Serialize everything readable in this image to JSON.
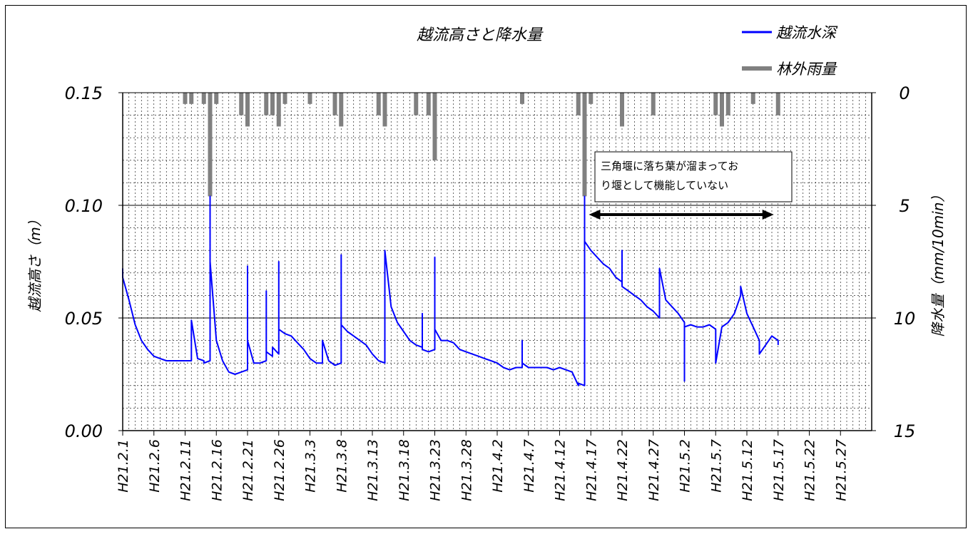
{
  "chart_data": {
    "type": "line",
    "title": "越流高さと降水量",
    "ylabel_left": "越流高さ（m）",
    "ylabel_right": "降水量（mm/10min）",
    "ylim_left": [
      0,
      0.15
    ],
    "ylim_right_inverted": [
      0,
      15
    ],
    "y_ticks_left": [
      "0.00",
      "0.05",
      "0.10",
      "0.15"
    ],
    "y_ticks_right": [
      "0",
      "5",
      "10",
      "15"
    ],
    "x_tick_labels": [
      "H21.2.1",
      "H21.2.6",
      "H21.2.11",
      "H21.2.16",
      "H21.2.21",
      "H21.2.26",
      "H21.3.3",
      "H21.3.8",
      "H21.3.13",
      "H21.3.18",
      "H21.3.23",
      "H21.3.28",
      "H21.4.2",
      "H21.4.7",
      "H21.4.12",
      "H21.4.17",
      "H21.4.22",
      "H21.4.27",
      "H21.5.2",
      "H21.5.7",
      "H21.5.12",
      "H21.5.17",
      "H21.5.22",
      "H21.5.27"
    ],
    "x_range_dates": [
      "2009-02-01",
      "2009-06-01"
    ],
    "grid": true,
    "legend": {
      "position": "top-right",
      "entries": [
        {
          "label": "越流水深",
          "color": "#0000ff"
        },
        {
          "label": "林外雨量",
          "color": "#808080"
        }
      ]
    },
    "annotation": {
      "lines": [
        "三角堰に落ち葉が溜まってお",
        "り堰として機能していない"
      ],
      "arrow_from": "2009-04-16",
      "arrow_to": "2009-05-17"
    },
    "series": [
      {
        "name": "越流水深",
        "axis": "left",
        "color": "#0000ff",
        "points": [
          [
            "2009-02-01",
            0.072
          ],
          [
            "2009-02-01",
            0.068
          ],
          [
            "2009-02-02",
            0.058
          ],
          [
            "2009-02-03",
            0.047
          ],
          [
            "2009-02-04",
            0.04
          ],
          [
            "2009-02-05",
            0.036
          ],
          [
            "2009-02-06",
            0.033
          ],
          [
            "2009-02-07",
            0.032
          ],
          [
            "2009-02-08",
            0.031
          ],
          [
            "2009-02-09",
            0.031
          ],
          [
            "2009-02-10",
            0.031
          ],
          [
            "2009-02-11",
            0.031
          ],
          [
            "2009-02-12",
            0.031
          ],
          [
            "2009-02-12",
            0.049
          ],
          [
            "2009-02-13",
            0.032
          ],
          [
            "2009-02-14",
            0.031
          ],
          [
            "2009-02-14",
            0.03
          ],
          [
            "2009-02-15",
            0.031
          ],
          [
            "2009-02-15",
            0.104
          ],
          [
            "2009-02-15",
            0.075
          ],
          [
            "2009-02-16",
            0.04
          ],
          [
            "2009-02-17",
            0.031
          ],
          [
            "2009-02-18",
            0.026
          ],
          [
            "2009-02-19",
            0.025
          ],
          [
            "2009-02-20",
            0.026
          ],
          [
            "2009-02-21",
            0.027
          ],
          [
            "2009-02-21",
            0.073
          ],
          [
            "2009-02-21",
            0.04
          ],
          [
            "2009-02-22",
            0.03
          ],
          [
            "2009-02-23",
            0.03
          ],
          [
            "2009-02-24",
            0.031
          ],
          [
            "2009-02-24",
            0.062
          ],
          [
            "2009-02-24",
            0.035
          ],
          [
            "2009-02-25",
            0.033
          ],
          [
            "2009-02-25",
            0.037
          ],
          [
            "2009-02-26",
            0.034
          ],
          [
            "2009-02-26",
            0.075
          ],
          [
            "2009-02-26",
            0.045
          ],
          [
            "2009-02-27",
            0.043
          ],
          [
            "2009-02-28",
            0.042
          ],
          [
            "2009-03-01",
            0.039
          ],
          [
            "2009-03-02",
            0.036
          ],
          [
            "2009-03-03",
            0.032
          ],
          [
            "2009-03-04",
            0.03
          ],
          [
            "2009-03-05",
            0.03
          ],
          [
            "2009-03-05",
            0.04
          ],
          [
            "2009-03-06",
            0.031
          ],
          [
            "2009-03-07",
            0.029
          ],
          [
            "2009-03-08",
            0.03
          ],
          [
            "2009-03-08",
            0.078
          ],
          [
            "2009-03-08",
            0.047
          ],
          [
            "2009-03-09",
            0.044
          ],
          [
            "2009-03-10",
            0.042
          ],
          [
            "2009-03-11",
            0.04
          ],
          [
            "2009-03-12",
            0.038
          ],
          [
            "2009-03-13",
            0.034
          ],
          [
            "2009-03-14",
            0.031
          ],
          [
            "2009-03-15",
            0.03
          ],
          [
            "2009-03-15",
            0.08
          ],
          [
            "2009-03-16",
            0.055
          ],
          [
            "2009-03-17",
            0.048
          ],
          [
            "2009-03-18",
            0.044
          ],
          [
            "2009-03-19",
            0.04
          ],
          [
            "2009-03-20",
            0.038
          ],
          [
            "2009-03-21",
            0.037
          ],
          [
            "2009-03-21",
            0.052
          ],
          [
            "2009-03-21",
            0.036
          ],
          [
            "2009-03-22",
            0.035
          ],
          [
            "2009-03-23",
            0.036
          ],
          [
            "2009-03-23",
            0.077
          ],
          [
            "2009-03-23",
            0.045
          ],
          [
            "2009-03-24",
            0.04
          ],
          [
            "2009-03-25",
            0.04
          ],
          [
            "2009-03-26",
            0.039
          ],
          [
            "2009-03-27",
            0.036
          ],
          [
            "2009-03-28",
            0.035
          ],
          [
            "2009-03-29",
            0.034
          ],
          [
            "2009-03-30",
            0.033
          ],
          [
            "2009-03-31",
            0.032
          ],
          [
            "2009-04-01",
            0.031
          ],
          [
            "2009-04-02",
            0.03
          ],
          [
            "2009-04-03",
            0.028
          ],
          [
            "2009-04-04",
            0.027
          ],
          [
            "2009-04-05",
            0.028
          ],
          [
            "2009-04-06",
            0.028
          ],
          [
            "2009-04-06",
            0.04
          ],
          [
            "2009-04-06",
            0.03
          ],
          [
            "2009-04-07",
            0.028
          ],
          [
            "2009-04-08",
            0.028
          ],
          [
            "2009-04-09",
            0.028
          ],
          [
            "2009-04-10",
            0.028
          ],
          [
            "2009-04-11",
            0.027
          ],
          [
            "2009-04-12",
            0.028
          ],
          [
            "2009-04-13",
            0.027
          ],
          [
            "2009-04-14",
            0.026
          ],
          [
            "2009-04-15",
            0.02
          ],
          [
            "2009-04-15",
            0.021
          ],
          [
            "2009-04-16",
            0.02
          ],
          [
            "2009-04-16",
            0.058
          ],
          [
            "2009-04-16",
            0.104
          ],
          [
            "2009-04-16",
            0.084
          ],
          [
            "2009-04-17",
            0.08
          ],
          [
            "2009-04-18",
            0.077
          ],
          [
            "2009-04-19",
            0.074
          ],
          [
            "2009-04-20",
            0.072
          ],
          [
            "2009-04-21",
            0.068
          ],
          [
            "2009-04-22",
            0.066
          ],
          [
            "2009-04-22",
            0.08
          ],
          [
            "2009-04-22",
            0.064
          ],
          [
            "2009-04-23",
            0.062
          ],
          [
            "2009-04-24",
            0.06
          ],
          [
            "2009-04-25",
            0.058
          ],
          [
            "2009-04-26",
            0.055
          ],
          [
            "2009-04-27",
            0.053
          ],
          [
            "2009-04-28",
            0.05
          ],
          [
            "2009-04-28",
            0.072
          ],
          [
            "2009-04-29",
            0.058
          ],
          [
            "2009-04-30",
            0.055
          ],
          [
            "2009-05-01",
            0.052
          ],
          [
            "2009-05-02",
            0.048
          ],
          [
            "2009-05-02",
            0.022
          ],
          [
            "2009-05-02",
            0.046
          ],
          [
            "2009-05-03",
            0.047
          ],
          [
            "2009-05-04",
            0.046
          ],
          [
            "2009-05-05",
            0.046
          ],
          [
            "2009-05-06",
            0.047
          ],
          [
            "2009-05-07",
            0.045
          ],
          [
            "2009-05-07",
            0.03
          ],
          [
            "2009-05-08",
            0.046
          ],
          [
            "2009-05-09",
            0.048
          ],
          [
            "2009-05-10",
            0.052
          ],
          [
            "2009-05-11",
            0.06
          ],
          [
            "2009-05-11",
            0.064
          ],
          [
            "2009-05-12",
            0.052
          ],
          [
            "2009-05-13",
            0.046
          ],
          [
            "2009-05-14",
            0.04
          ],
          [
            "2009-05-14",
            0.034
          ],
          [
            "2009-05-15",
            0.038
          ],
          [
            "2009-05-16",
            0.042
          ],
          [
            "2009-05-17",
            0.04
          ],
          [
            "2009-05-17",
            0.038
          ]
        ]
      },
      {
        "name": "林外雨量",
        "axis": "right",
        "color": "#808080",
        "type": "bar",
        "points": [
          [
            "2009-02-11",
            0.5
          ],
          [
            "2009-02-12",
            0.5
          ],
          [
            "2009-02-14",
            0.5
          ],
          [
            "2009-02-15",
            4.6
          ],
          [
            "2009-02-16",
            0.5
          ],
          [
            "2009-02-20",
            1.0
          ],
          [
            "2009-02-21",
            1.5
          ],
          [
            "2009-02-24",
            1.0
          ],
          [
            "2009-02-25",
            1.0
          ],
          [
            "2009-02-26",
            1.5
          ],
          [
            "2009-02-27",
            0.5
          ],
          [
            "2009-03-03",
            0.5
          ],
          [
            "2009-03-07",
            1.0
          ],
          [
            "2009-03-08",
            1.5
          ],
          [
            "2009-03-14",
            1.0
          ],
          [
            "2009-03-15",
            1.5
          ],
          [
            "2009-03-20",
            1.0
          ],
          [
            "2009-03-22",
            1.0
          ],
          [
            "2009-03-23",
            3.0
          ],
          [
            "2009-04-06",
            0.5
          ],
          [
            "2009-04-15",
            1.0
          ],
          [
            "2009-04-16",
            4.6
          ],
          [
            "2009-04-17",
            0.5
          ],
          [
            "2009-04-22",
            1.5
          ],
          [
            "2009-04-27",
            1.0
          ],
          [
            "2009-05-07",
            1.0
          ],
          [
            "2009-05-08",
            1.5
          ],
          [
            "2009-05-09",
            1.0
          ],
          [
            "2009-05-13",
            0.5
          ],
          [
            "2009-05-17",
            1.0
          ]
        ]
      }
    ]
  }
}
